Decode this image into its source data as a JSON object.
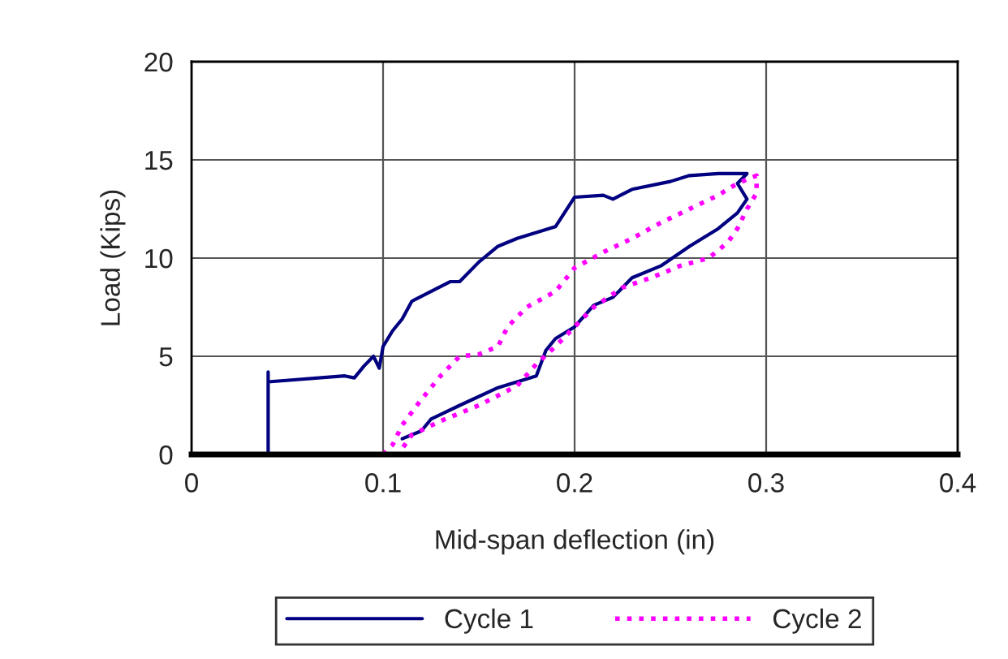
{
  "chart_data": {
    "type": "line",
    "xlabel": "Mid-span deflection (in)",
    "ylabel": "Load (Kips)",
    "xlim": [
      0,
      0.4
    ],
    "ylim": [
      0,
      20
    ],
    "xticks": [
      0,
      0.1,
      0.2,
      0.3,
      0.4
    ],
    "yticks": [
      0,
      5,
      10,
      15,
      20
    ],
    "grid": true,
    "legend": "bottom",
    "marker": "none",
    "series": [
      {
        "name": "Cycle 1",
        "color": "#000080",
        "line_style": "solid",
        "x": [
          0.04,
          0.04,
          0.04,
          0.08,
          0.085,
          0.09,
          0.095,
          0.098,
          0.1,
          0.105,
          0.11,
          0.115,
          0.125,
          0.135,
          0.14,
          0.15,
          0.16,
          0.17,
          0.18,
          0.19,
          0.2,
          0.215,
          0.22,
          0.23,
          0.25,
          0.26,
          0.275,
          0.29,
          0.285,
          0.29,
          0.285,
          0.275,
          0.26,
          0.245,
          0.23,
          0.22,
          0.21,
          0.2,
          0.19,
          0.185,
          0.18,
          0.16,
          0.14,
          0.125,
          0.12,
          0.115,
          0.11
        ],
        "values": [
          0,
          4.2,
          3.7,
          4.0,
          3.9,
          4.5,
          5.0,
          4.4,
          5.5,
          6.3,
          6.9,
          7.8,
          8.3,
          8.8,
          8.8,
          9.8,
          10.6,
          11.0,
          11.3,
          11.6,
          13.1,
          13.2,
          13.0,
          13.5,
          13.9,
          14.2,
          14.3,
          14.3,
          13.8,
          13.0,
          12.3,
          11.5,
          10.6,
          9.6,
          9.0,
          8.0,
          7.6,
          6.5,
          5.9,
          5.3,
          4.0,
          3.4,
          2.5,
          1.8,
          1.2,
          1.0,
          0.8
        ]
      },
      {
        "name": "Cycle 2",
        "color": "#ff00ff",
        "line_style": "dotted",
        "x": [
          0.1,
          0.105,
          0.11,
          0.12,
          0.13,
          0.14,
          0.15,
          0.16,
          0.165,
          0.175,
          0.19,
          0.2,
          0.215,
          0.23,
          0.245,
          0.26,
          0.275,
          0.285,
          0.29,
          0.295,
          0.295,
          0.29,
          0.285,
          0.28,
          0.27,
          0.255,
          0.24,
          0.225,
          0.21,
          0.2,
          0.19,
          0.18,
          0.17,
          0.15,
          0.13,
          0.115,
          0.11
        ],
        "values": [
          0,
          0.5,
          1.5,
          2.8,
          4.0,
          5.0,
          5.1,
          5.5,
          6.5,
          7.5,
          8.3,
          9.5,
          10.3,
          11.0,
          11.8,
          12.5,
          13.2,
          13.8,
          14.0,
          14.2,
          13.3,
          12.5,
          11.5,
          10.8,
          10.0,
          9.6,
          9.0,
          8.5,
          7.5,
          6.5,
          5.5,
          4.6,
          3.5,
          2.5,
          1.7,
          1.0,
          0.3
        ]
      }
    ]
  }
}
